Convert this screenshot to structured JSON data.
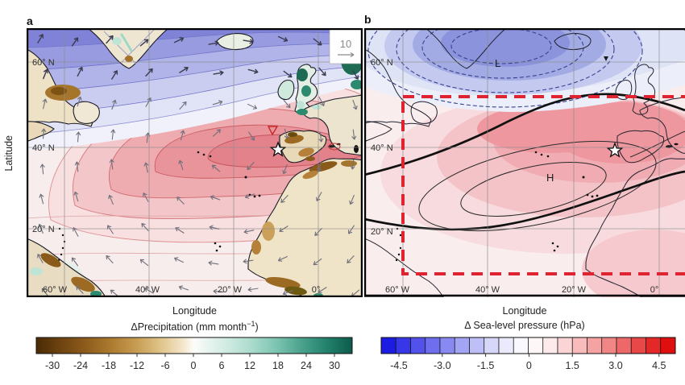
{
  "figure": {
    "ylabel": "Latitude"
  },
  "panel_a": {
    "label": "a",
    "xlabel": "Longitude",
    "lat_ticks": [
      "60° N",
      "40° N",
      "20° N"
    ],
    "lon_ticks": [
      "60° W",
      "40° W",
      "20° W",
      "0°"
    ],
    "wind_scale": "10",
    "site_marker": "star",
    "colorbar": {
      "title_prefix": "ΔPrecipitation (mm month",
      "title_sup": "−1",
      "title_suffix": ")",
      "ticks": [
        "-30",
        "-24",
        "-18",
        "-12",
        "-6",
        "0",
        "6",
        "12",
        "18",
        "24",
        "30"
      ],
      "gradient": [
        [
          "0%",
          "#4a2a05"
        ],
        [
          "8%",
          "#6f4410"
        ],
        [
          "16%",
          "#8f5d1d"
        ],
        [
          "24%",
          "#ad7c30"
        ],
        [
          "32%",
          "#c89e55"
        ],
        [
          "40%",
          "#e2c78f"
        ],
        [
          "46%",
          "#f2e4c6"
        ],
        [
          "50%",
          "#fdfdfb"
        ],
        [
          "54%",
          "#e9f5f0"
        ],
        [
          "60%",
          "#d2ebe3"
        ],
        [
          "68%",
          "#abdccd"
        ],
        [
          "76%",
          "#7cc4b1"
        ],
        [
          "84%",
          "#4aa28c"
        ],
        [
          "92%",
          "#23816b"
        ],
        [
          "100%",
          "#0d5b4a"
        ]
      ]
    }
  },
  "panel_b": {
    "label": "b",
    "xlabel": "Longitude",
    "lat_ticks": [
      "60° N",
      "40° N",
      "20° N"
    ],
    "lon_ticks": [
      "60° W",
      "40° W",
      "20° W",
      "0°"
    ],
    "low_label": "L",
    "high_label": "H",
    "box_color": "#e02330",
    "colorbar": {
      "title": "Δ Sea-level pressure (hPa)",
      "ticks": [
        "-4.5",
        "-3.0",
        "-1.5",
        "0",
        "1.5",
        "3.0",
        "4.5"
      ],
      "cells": [
        "#1b1be2",
        "#3737e7",
        "#5252eb",
        "#6e6eef",
        "#8989f2",
        "#a4a4f5",
        "#bfbff7",
        "#d7d7fa",
        "#eaeafc",
        "#f8f8fe",
        "#fef7f7",
        "#fdeaea",
        "#fbd5d5",
        "#f8bcbc",
        "#f5a2a2",
        "#f18686",
        "#ed6868",
        "#e94848",
        "#e42828",
        "#df0f0f"
      ]
    }
  }
}
